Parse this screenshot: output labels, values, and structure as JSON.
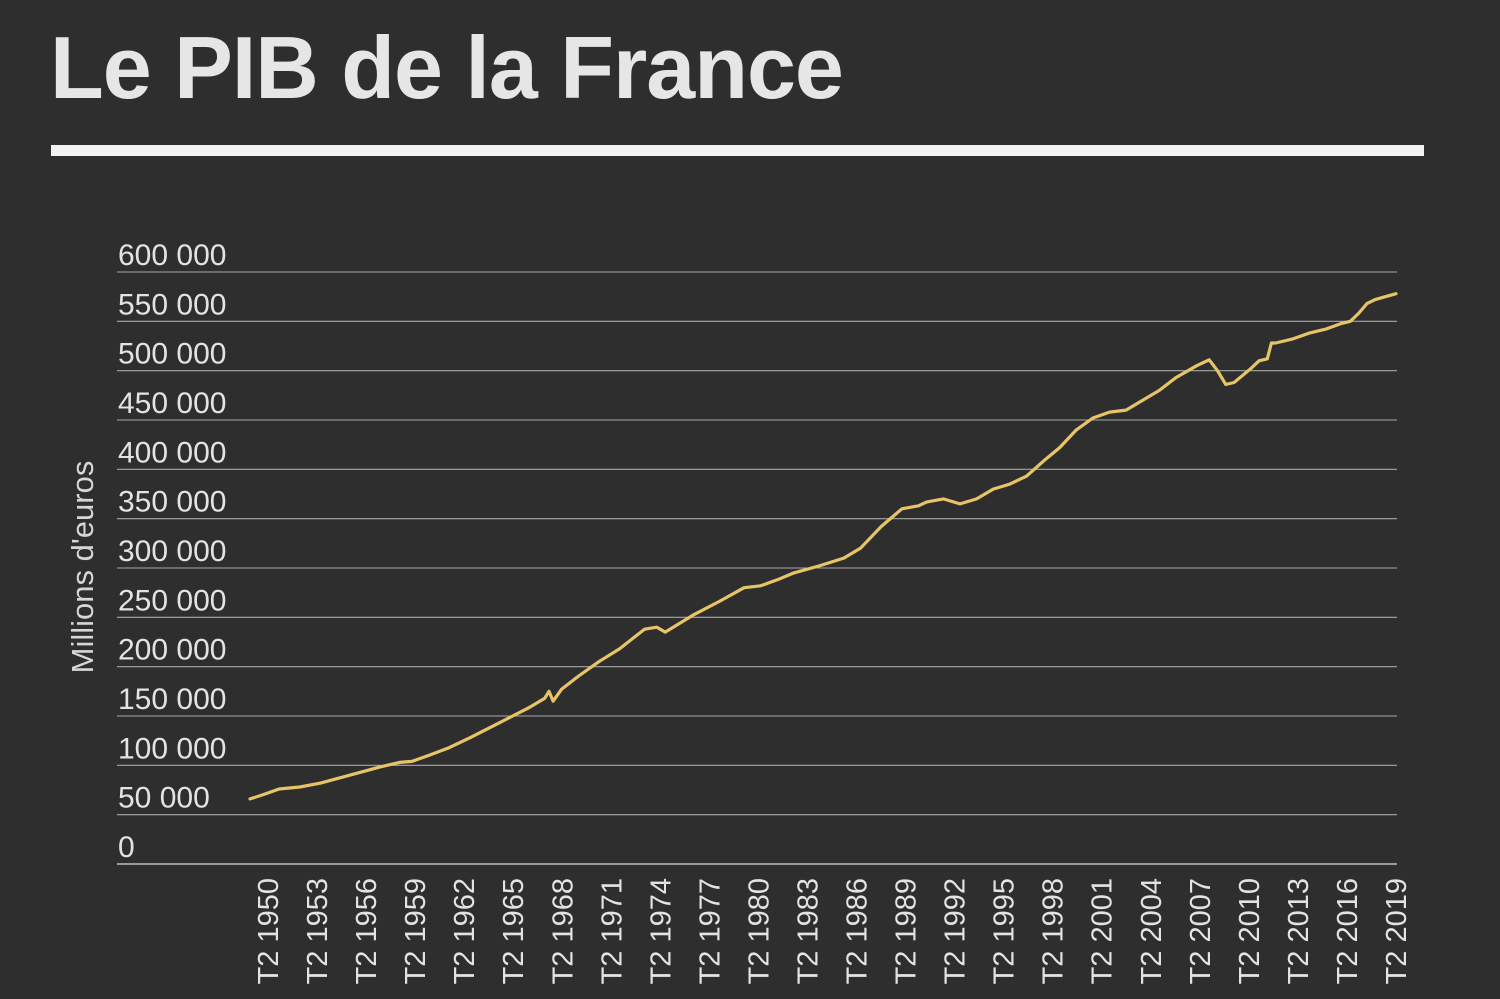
{
  "chart_data": {
    "type": "line",
    "title": "Le PIB de la France",
    "xlabel": "",
    "ylabel": "Millions d'euros",
    "ylim": [
      0,
      600000
    ],
    "yticks": [
      0,
      50000,
      100000,
      150000,
      200000,
      250000,
      300000,
      350000,
      400000,
      450000,
      500000,
      550000,
      600000
    ],
    "ytick_labels": [
      "0",
      "50 000",
      "100 000",
      "150 000",
      "200 000",
      "250 000",
      "300 000",
      "350 000",
      "400 000",
      "450 000",
      "500 000",
      "550 000",
      "600 000"
    ],
    "xlim": [
      1950.25,
      2019.25
    ],
    "xtick_labels": [
      "T2 1950",
      "T2 1953",
      "T2 1956",
      "T2 1959",
      "T2 1962",
      "T2 1965",
      "T2 1968",
      "T2 1971",
      "T2 1974",
      "T2 1977",
      "T2 1980",
      "T2 1983",
      "T2 1986",
      "T2 1989",
      "T2 1992",
      "T2 1995",
      "T2 1998",
      "T2 2001",
      "T2 2004",
      "T2 2007",
      "T2 2010",
      "T2 2013",
      "T2 2016",
      "T2 2019"
    ],
    "grid": true,
    "line_color": "#e8c468",
    "series": [
      {
        "x": [
          1950.25,
          1951.0,
          1952.0,
          1953.25,
          1954.5,
          1956.25,
          1958.0,
          1959.25,
          1960.0,
          1961.0,
          1962.25,
          1963.5,
          1965.25,
          1967.0,
          1968.0,
          1968.25,
          1968.5,
          1969.0,
          1970.0,
          1971.25,
          1972.5,
          1974.0,
          1974.75,
          1975.25,
          1977.0,
          1978.5,
          1980.0,
          1981.0,
          1982.0,
          1983.0,
          1984.5,
          1986.0,
          1987.0,
          1988.25,
          1989.5,
          1990.5,
          1991.0,
          1992.0,
          1993.0,
          1994.0,
          1995.0,
          1996.0,
          1997.0,
          1998.0,
          1999.0,
          2000.0,
          2001.0,
          2002.0,
          2003.0,
          2004.0,
          2005.0,
          2006.0,
          2007.25,
          2008.0,
          2008.5,
          2009.0,
          2009.5,
          2010.5,
          2011.0,
          2011.5,
          2011.75,
          2012.0,
          2013.0,
          2014.0,
          2015.0,
          2016.0,
          2016.5,
          2017.0,
          2017.5,
          2018.0,
          2019.25
        ],
        "values": [
          66000,
          70000,
          76000,
          78000,
          82000,
          90000,
          98000,
          103000,
          104000,
          110000,
          118000,
          128000,
          143000,
          158000,
          168000,
          175000,
          165000,
          177000,
          190000,
          205000,
          218000,
          238000,
          240000,
          235000,
          253000,
          266000,
          280000,
          282000,
          288000,
          295000,
          302000,
          310000,
          320000,
          342000,
          360000,
          363000,
          367000,
          370000,
          365000,
          370000,
          380000,
          385000,
          393000,
          408000,
          422000,
          440000,
          452000,
          458000,
          460000,
          470000,
          480000,
          493000,
          505000,
          511000,
          500000,
          486000,
          488000,
          502000,
          510000,
          512000,
          528000,
          528000,
          532000,
          538000,
          542000,
          548000,
          550000,
          558000,
          568000,
          572000,
          578000
        ]
      }
    ]
  }
}
